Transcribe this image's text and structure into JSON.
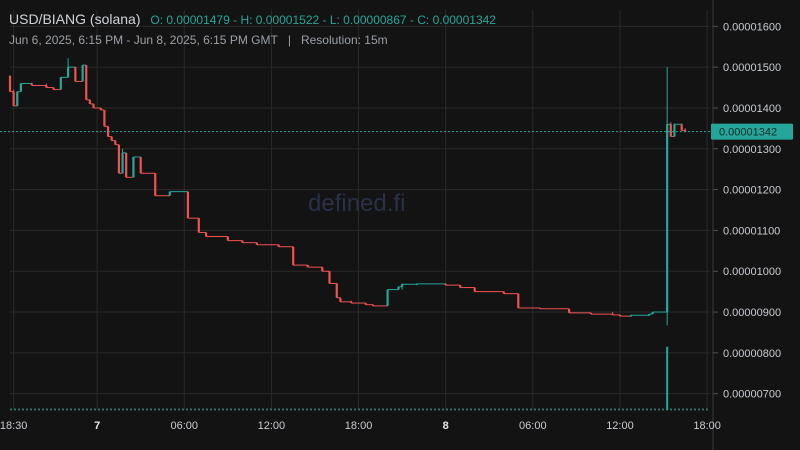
{
  "header": {
    "symbol": "USD/BIANG (solana)",
    "ohlc": "O: 0.00001479 - H: 0.00001522 - L: 0.00000867 - C: 0.00001342",
    "range": "Jun 6, 2025, 6:15 PM - Jun 8, 2025, 6:15 PM GMT",
    "separator": "|",
    "resolution": "Resolution: 15m"
  },
  "watermark": "defined.fi",
  "colors": {
    "up": "#26a69a",
    "down": "#ef5350",
    "background": "#131313",
    "grid": "#2a2a2a"
  },
  "chart_data": {
    "type": "candlestick",
    "y_ticks": [
      "0.00001600",
      "0.00001500",
      "0.00001400",
      "0.00001300",
      "0.00001200",
      "0.00001100",
      "0.00001000",
      "0.00000900",
      "0.00000800",
      "0.00000700"
    ],
    "ylim": [
      6.6e-06,
      1.64e-05
    ],
    "x_ticks": [
      {
        "label": "18:30",
        "t": 0.25,
        "bold": false
      },
      {
        "label": "7",
        "t": 6,
        "bold": true
      },
      {
        "label": "06:00",
        "t": 12,
        "bold": false
      },
      {
        "label": "12:00",
        "t": 18,
        "bold": false
      },
      {
        "label": "18:00",
        "t": 24,
        "bold": false
      },
      {
        "label": "8",
        "t": 30,
        "bold": true
      },
      {
        "label": "06:00",
        "t": 36,
        "bold": false
      },
      {
        "label": "12:00",
        "t": 42,
        "bold": false
      },
      {
        "label": "18:00",
        "t": 48,
        "bold": false
      }
    ],
    "xlim": [
      0,
      48.2
    ],
    "last_price": "0.00001342",
    "candles": [
      [
        0.0,
        1479,
        1479,
        1440,
        1440
      ],
      [
        0.25,
        1440,
        1445,
        1405,
        1405
      ],
      [
        0.5,
        1405,
        1440,
        1405,
        1440
      ],
      [
        0.75,
        1440,
        1460,
        1440,
        1460
      ],
      [
        1.5,
        1460,
        1462,
        1455,
        1455
      ],
      [
        2.5,
        1455,
        1460,
        1450,
        1450
      ],
      [
        3.0,
        1450,
        1450,
        1445,
        1445
      ],
      [
        3.5,
        1445,
        1475,
        1445,
        1475
      ],
      [
        4.0,
        1475,
        1522,
        1475,
        1500
      ],
      [
        4.5,
        1500,
        1500,
        1465,
        1465
      ],
      [
        5.0,
        1465,
        1505,
        1465,
        1505
      ],
      [
        5.25,
        1505,
        1505,
        1420,
        1420
      ],
      [
        5.5,
        1420,
        1420,
        1410,
        1410
      ],
      [
        5.75,
        1410,
        1410,
        1400,
        1400
      ],
      [
        6.25,
        1400,
        1400,
        1395,
        1395
      ],
      [
        6.5,
        1395,
        1395,
        1355,
        1355
      ],
      [
        6.75,
        1355,
        1355,
        1330,
        1330
      ],
      [
        7.0,
        1330,
        1330,
        1320,
        1320
      ],
      [
        7.25,
        1320,
        1320,
        1310,
        1310
      ],
      [
        7.5,
        1310,
        1310,
        1240,
        1240
      ],
      [
        7.75,
        1240,
        1300,
        1240,
        1290
      ],
      [
        8.0,
        1290,
        1290,
        1230,
        1230
      ],
      [
        8.5,
        1230,
        1280,
        1230,
        1280
      ],
      [
        9.0,
        1280,
        1280,
        1240,
        1240
      ],
      [
        10.0,
        1240,
        1240,
        1185,
        1185
      ],
      [
        11.0,
        1185,
        1195,
        1185,
        1195
      ],
      [
        12.25,
        1195,
        1195,
        1130,
        1130
      ],
      [
        13.0,
        1130,
        1130,
        1095,
        1095
      ],
      [
        13.5,
        1095,
        1095,
        1085,
        1085
      ],
      [
        15.0,
        1085,
        1085,
        1075,
        1075
      ],
      [
        16.0,
        1075,
        1075,
        1070,
        1070
      ],
      [
        17.0,
        1070,
        1070,
        1065,
        1065
      ],
      [
        18.5,
        1065,
        1065,
        1060,
        1060
      ],
      [
        19.5,
        1060,
        1060,
        1015,
        1015
      ],
      [
        20.5,
        1015,
        1015,
        1010,
        1010
      ],
      [
        21.5,
        1010,
        1010,
        1000,
        1000
      ],
      [
        22.0,
        1000,
        1000,
        970,
        970
      ],
      [
        22.5,
        970,
        970,
        935,
        935
      ],
      [
        22.75,
        935,
        935,
        925,
        925
      ],
      [
        23.5,
        925,
        928,
        922,
        922
      ],
      [
        24.5,
        922,
        922,
        918,
        918
      ],
      [
        25.0,
        918,
        918,
        915,
        915
      ],
      [
        26.0,
        915,
        955,
        915,
        955
      ],
      [
        26.75,
        955,
        962,
        955,
        962
      ],
      [
        27.0,
        962,
        970,
        955,
        968
      ],
      [
        28.0,
        968,
        970,
        966,
        969
      ],
      [
        30.0,
        969,
        970,
        965,
        966
      ],
      [
        31.0,
        966,
        966,
        960,
        960
      ],
      [
        32.0,
        960,
        960,
        950,
        950
      ],
      [
        34.0,
        950,
        950,
        945,
        945
      ],
      [
        35.0,
        945,
        945,
        910,
        910
      ],
      [
        36.5,
        910,
        910,
        908,
        908
      ],
      [
        38.5,
        908,
        908,
        898,
        898
      ],
      [
        40.0,
        898,
        898,
        895,
        895
      ],
      [
        41.5,
        895,
        900,
        893,
        893
      ],
      [
        42.0,
        893,
        893,
        890,
        890
      ],
      [
        42.75,
        890,
        893,
        888,
        892
      ],
      [
        44.0,
        892,
        895,
        890,
        895
      ],
      [
        44.25,
        895,
        900,
        895,
        900
      ],
      [
        45.25,
        900,
        1500,
        867,
        1360
      ],
      [
        45.5,
        1360,
        1365,
        1330,
        1330
      ],
      [
        45.75,
        1330,
        1362,
        1330,
        1360
      ],
      [
        46.25,
        1360,
        1362,
        1345,
        1345
      ],
      [
        46.5,
        1345,
        1350,
        1340,
        1342
      ]
    ],
    "volume_spikes": [
      [
        45.25,
        815
      ]
    ]
  }
}
